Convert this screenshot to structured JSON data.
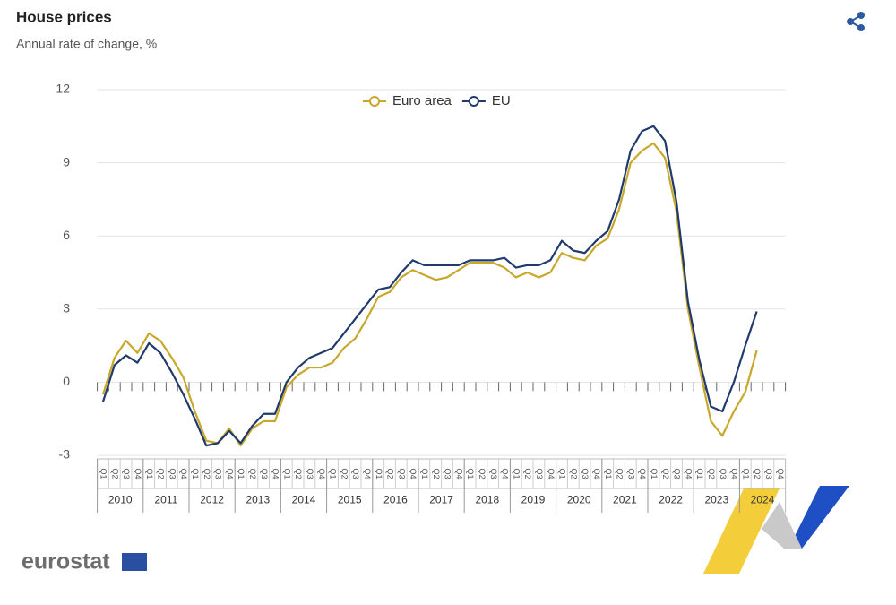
{
  "chart_data": {
    "type": "line",
    "title": "House prices",
    "subtitle": "Annual rate of change, %",
    "categories": [
      "Q1",
      "Q2",
      "Q3",
      "Q4",
      "Q1",
      "Q2",
      "Q3",
      "Q4",
      "Q1",
      "Q2",
      "Q3",
      "Q4",
      "Q1",
      "Q2",
      "Q3",
      "Q4",
      "Q1",
      "Q2",
      "Q3",
      "Q4",
      "Q1",
      "Q2",
      "Q3",
      "Q4",
      "Q1",
      "Q2",
      "Q3",
      "Q4",
      "Q1",
      "Q2",
      "Q3",
      "Q4",
      "Q1",
      "Q2",
      "Q3",
      "Q4",
      "Q1",
      "Q2",
      "Q3",
      "Q4",
      "Q1",
      "Q2",
      "Q3",
      "Q4",
      "Q1",
      "Q2",
      "Q3",
      "Q4",
      "Q1",
      "Q2",
      "Q3",
      "Q4",
      "Q1",
      "Q2",
      "Q3",
      "Q4",
      "Q1",
      "Q2",
      "Q3",
      "Q4"
    ],
    "years": [
      2010,
      2011,
      2012,
      2013,
      2014,
      2015,
      2016,
      2017,
      2018,
      2019,
      2020,
      2021,
      2022,
      2023,
      2024
    ],
    "series": [
      {
        "name": "Euro area",
        "color": "#c8a82a",
        "values": [
          -0.5,
          1.0,
          1.7,
          1.2,
          2.0,
          1.7,
          1.0,
          0.2,
          -1.2,
          -2.4,
          -2.5,
          -1.9,
          -2.6,
          -1.9,
          -1.6,
          -1.6,
          -0.2,
          0.3,
          0.6,
          0.6,
          0.8,
          1.4,
          1.8,
          2.6,
          3.5,
          3.7,
          4.3,
          4.6,
          4.4,
          4.2,
          4.3,
          4.6,
          4.9,
          4.9,
          4.9,
          4.7,
          4.3,
          4.5,
          4.3,
          4.5,
          5.3,
          5.1,
          5.0,
          5.6,
          5.9,
          7.1,
          9.0,
          9.5,
          9.8,
          9.2,
          7.0,
          3.0,
          0.6,
          -1.6,
          -2.2,
          -1.2,
          -0.4,
          1.3,
          null,
          null
        ]
      },
      {
        "name": "EU",
        "color": "#1f3a6b",
        "values": [
          -0.8,
          0.7,
          1.1,
          0.8,
          1.6,
          1.2,
          0.4,
          -0.5,
          -1.5,
          -2.6,
          -2.5,
          -2.0,
          -2.5,
          -1.8,
          -1.3,
          -1.3,
          0.0,
          0.6,
          1.0,
          1.2,
          1.4,
          2.0,
          2.6,
          3.2,
          3.8,
          3.9,
          4.5,
          5.0,
          4.8,
          4.8,
          4.8,
          4.8,
          5.0,
          5.0,
          5.0,
          5.1,
          4.7,
          4.8,
          4.8,
          5.0,
          5.8,
          5.4,
          5.3,
          5.8,
          6.2,
          7.5,
          9.5,
          10.3,
          10.5,
          9.9,
          7.4,
          3.3,
          0.9,
          -1.0,
          -1.2,
          0.0,
          1.5,
          2.9,
          null,
          null
        ]
      }
    ],
    "ylim": [
      -3,
      12
    ],
    "yticks": [
      -3,
      0,
      3,
      6,
      9,
      12
    ],
    "grid": true,
    "legend": "top",
    "source_logo": "eurostat"
  }
}
